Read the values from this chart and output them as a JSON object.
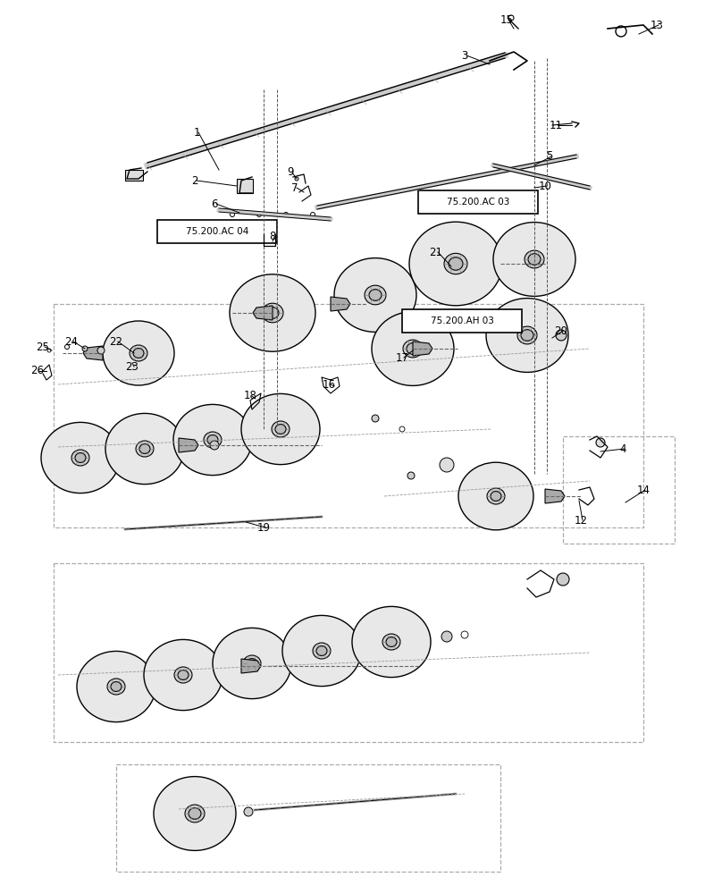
{
  "bg_color": "#ffffff",
  "line_color": "#000000",
  "dash_color": "#555555",
  "ref_boxes": {
    "75.200.AC 04": [
      178,
      248,
      130,
      22
    ],
    "75.200.AC 03": [
      470,
      215,
      130,
      22
    ],
    "75.200.AH 03": [
      452,
      348,
      130,
      22
    ]
  },
  "labels_data": [
    [
      "1",
      220,
      148,
      245,
      190
    ],
    [
      "2",
      218,
      202,
      265,
      208
    ],
    [
      "3",
      520,
      62,
      548,
      72
    ],
    [
      "4",
      697,
      502,
      672,
      505
    ],
    [
      "5",
      615,
      175,
      598,
      185
    ],
    [
      "6",
      240,
      228,
      268,
      238
    ],
    [
      "7",
      330,
      210,
      340,
      215
    ],
    [
      "8",
      305,
      265,
      305,
      270
    ],
    [
      "9",
      325,
      193,
      332,
      200
    ],
    [
      "10",
      610,
      208,
      598,
      210
    ],
    [
      "11",
      622,
      140,
      640,
      140
    ],
    [
      "12",
      650,
      582,
      648,
      560
    ],
    [
      "13",
      735,
      28,
      715,
      38
    ],
    [
      "14",
      720,
      548,
      700,
      562
    ],
    [
      "15",
      567,
      22,
      575,
      32
    ],
    [
      "16",
      368,
      430,
      374,
      432
    ],
    [
      "17",
      450,
      400,
      462,
      392
    ],
    [
      "18",
      280,
      443,
      286,
      446
    ],
    [
      "19",
      295,
      590,
      275,
      584
    ],
    [
      "20",
      628,
      370,
      618,
      378
    ],
    [
      "21",
      488,
      282,
      505,
      298
    ],
    [
      "22",
      130,
      382,
      150,
      395
    ],
    [
      "23",
      148,
      410,
      148,
      406
    ],
    [
      "24",
      80,
      382,
      95,
      390
    ],
    [
      "25",
      48,
      388,
      58,
      392
    ],
    [
      "26",
      42,
      415,
      52,
      415
    ]
  ]
}
